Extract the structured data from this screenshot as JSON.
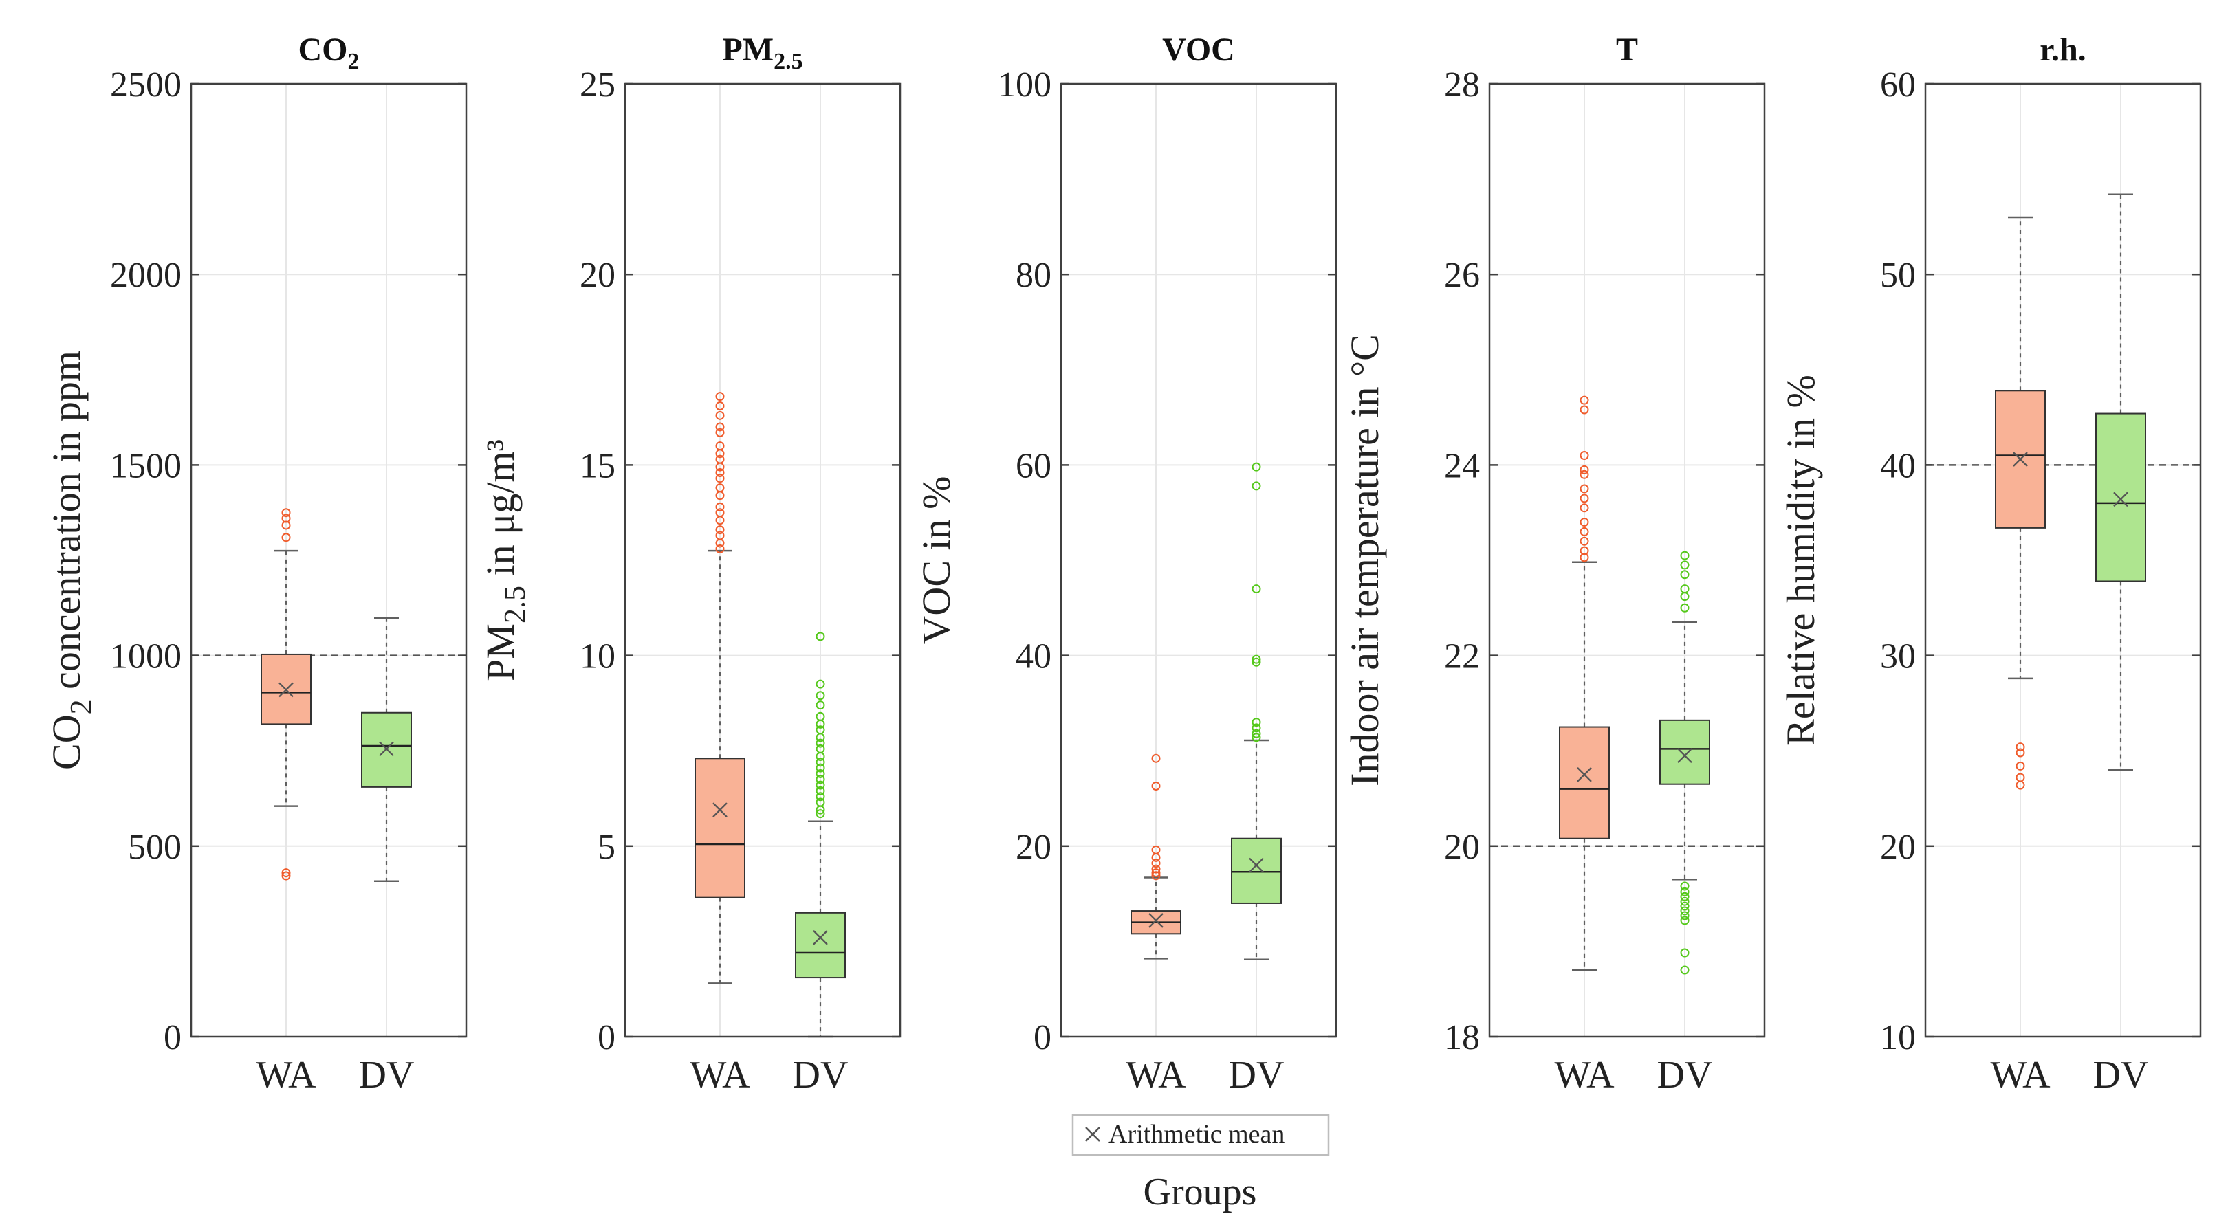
{
  "figure": {
    "xlabel": "Groups",
    "legend_label": "Arithmetic mean"
  },
  "colors": {
    "wa_fill": "#f9b296",
    "wa_edge": "#f05b2b",
    "dv_fill": "#aee58f",
    "dv_edge": "#54c81a",
    "axis": "#404040",
    "grid": "#e6e6e6",
    "whisker": "#606060"
  },
  "chart_data": [
    {
      "type": "box",
      "title_main": "CO",
      "title_sub": "2",
      "ylabel_main": "CO",
      "ylabel_sub": "2",
      "ylabel_rest": " concentration in ppm",
      "ylim": [
        0,
        2500
      ],
      "yticks": [
        0,
        500,
        1000,
        1500,
        2000,
        2500
      ],
      "reference_line": 1000,
      "categories": [
        "WA",
        "DV"
      ],
      "groups": [
        {
          "name": "WA",
          "whisker_low": 605,
          "q1": 820,
          "median": 903,
          "q3": 1003,
          "whisker_high": 1275,
          "mean": 910,
          "outliers": [
            1375,
            1360,
            1342,
            1310,
            430,
            422
          ]
        },
        {
          "name": "DV",
          "whisker_low": 408,
          "q1": 655,
          "median": 763,
          "q3": 850,
          "whisker_high": 1098,
          "mean": 755,
          "outliers": []
        }
      ]
    },
    {
      "type": "box",
      "title_main": "PM",
      "title_sub": "2.5",
      "ylabel_main": "PM",
      "ylabel_sub": "2.5",
      "ylabel_rest": " in μg/m³",
      "ylim": [
        0,
        25
      ],
      "yticks": [
        0,
        5,
        10,
        15,
        20,
        25
      ],
      "reference_line": null,
      "categories": [
        "WA",
        "DV"
      ],
      "groups": [
        {
          "name": "WA",
          "whisker_low": 1.4,
          "q1": 3.65,
          "median": 5.05,
          "q3": 7.3,
          "whisker_high": 12.75,
          "mean": 5.95,
          "outliers": [
            16.8,
            16.55,
            16.3,
            16.0,
            15.85,
            15.5,
            15.3,
            15.15,
            14.95,
            14.8,
            14.65,
            14.4,
            14.2,
            13.9,
            13.75,
            13.55,
            13.3,
            13.15,
            12.95,
            12.8
          ]
        },
        {
          "name": "DV",
          "whisker_low": 0.0,
          "q1": 1.55,
          "median": 2.2,
          "q3": 3.25,
          "whisker_high": 5.65,
          "mean": 2.6,
          "outliers": [
            10.5,
            9.25,
            8.95,
            8.7,
            8.4,
            8.2,
            8.05,
            7.85,
            7.7,
            7.55,
            7.35,
            7.2,
            7.05,
            6.9,
            6.75,
            6.6,
            6.45,
            6.3,
            6.15,
            5.95,
            5.85
          ]
        }
      ]
    },
    {
      "type": "box",
      "title_main": "VOC",
      "title_sub": "",
      "ylabel_main": "VOC in %",
      "ylabel_sub": "",
      "ylabel_rest": "",
      "ylim": [
        0,
        100
      ],
      "yticks": [
        0,
        20,
        40,
        60,
        80,
        100
      ],
      "reference_line": null,
      "categories": [
        "WA",
        "DV"
      ],
      "groups": [
        {
          "name": "WA",
          "whisker_low": 8.2,
          "q1": 10.8,
          "median": 12.0,
          "q3": 13.2,
          "whisker_high": 16.7,
          "mean": 12.2,
          "outliers": [
            29.2,
            26.3,
            19.6,
            18.8,
            18.2,
            17.6,
            17.2,
            16.9
          ]
        },
        {
          "name": "DV",
          "whisker_low": 8.1,
          "q1": 14.0,
          "median": 17.3,
          "q3": 20.8,
          "whisker_high": 31.1,
          "mean": 18.0,
          "outliers": [
            59.8,
            57.8,
            47.0,
            39.6,
            39.3,
            33.0,
            32.4,
            31.8,
            31.4
          ]
        }
      ]
    },
    {
      "type": "box",
      "title_main": "T",
      "title_sub": "",
      "ylabel_main": "Indoor air temperature in °C",
      "ylabel_sub": "",
      "ylabel_rest": "",
      "ylim": [
        18,
        28
      ],
      "yticks": [
        18,
        20,
        22,
        24,
        26,
        28
      ],
      "reference_line": 20,
      "categories": [
        "WA",
        "DV"
      ],
      "groups": [
        {
          "name": "WA",
          "whisker_low": 18.7,
          "q1": 20.08,
          "median": 20.6,
          "q3": 21.25,
          "whisker_high": 22.98,
          "mean": 20.75,
          "outliers": [
            24.68,
            24.58,
            24.1,
            23.95,
            23.9,
            23.75,
            23.65,
            23.55,
            23.4,
            23.3,
            23.2,
            23.1,
            23.03
          ]
        },
        {
          "name": "DV",
          "whisker_low": 19.65,
          "q1": 20.65,
          "median": 21.02,
          "q3": 21.32,
          "whisker_high": 22.35,
          "mean": 20.95,
          "outliers": [
            23.05,
            22.95,
            22.85,
            22.7,
            22.62,
            22.5,
            19.58,
            19.52,
            19.47,
            19.42,
            19.37,
            19.32,
            19.27,
            19.22,
            18.88,
            18.7
          ]
        }
      ]
    },
    {
      "type": "box",
      "title_main": "r.h.",
      "title_sub": "",
      "ylabel_main": "Relative humidity in %",
      "ylabel_sub": "",
      "ylabel_rest": "",
      "ylim": [
        10,
        60
      ],
      "yticks": [
        10,
        20,
        30,
        40,
        50,
        60
      ],
      "reference_line": 40,
      "categories": [
        "WA",
        "DV"
      ],
      "groups": [
        {
          "name": "WA",
          "whisker_low": 28.8,
          "q1": 36.7,
          "median": 40.5,
          "q3": 43.9,
          "whisker_high": 53.0,
          "mean": 40.3,
          "outliers": [
            25.2,
            24.9,
            24.2,
            23.6,
            23.2
          ]
        },
        {
          "name": "DV",
          "whisker_low": 24.0,
          "q1": 33.9,
          "median": 38.0,
          "q3": 42.7,
          "whisker_high": 54.2,
          "mean": 38.2,
          "outliers": []
        }
      ]
    }
  ]
}
